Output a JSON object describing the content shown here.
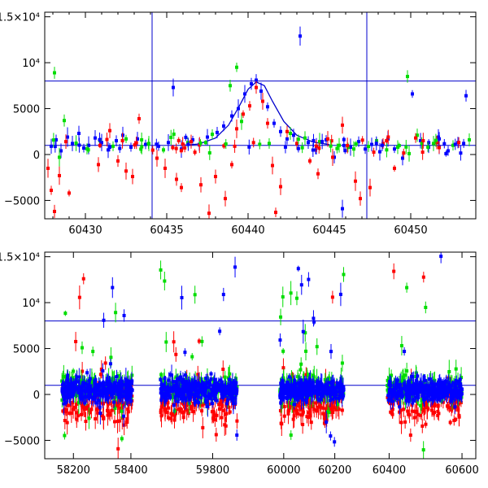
{
  "chart_data": [
    {
      "type": "scatter",
      "xlim": [
        60427.5,
        60454
      ],
      "ylim": [
        -7000,
        15500
      ],
      "x_ticks": [
        60430,
        60435,
        60440,
        60445,
        60450
      ],
      "x_tick_labels": [
        "60430",
        "60435",
        "60440",
        "60445",
        "60450"
      ],
      "y_ticks": [
        -5000,
        0,
        5000,
        10000,
        15000
      ],
      "y_tick_labels": [
        "−5000",
        "0",
        "5000",
        "10⁴",
        "1.5×10⁴"
      ],
      "hlines": [
        1000,
        8000
      ],
      "vlines": [
        60434.1,
        60447.3
      ],
      "model_curve": {
        "color": "#0000cc",
        "points": [
          [
            60436.0,
            1000
          ],
          [
            60437.0,
            1150
          ],
          [
            60438.0,
            1800
          ],
          [
            60438.8,
            3200
          ],
          [
            60439.5,
            5400
          ],
          [
            60440.0,
            7100
          ],
          [
            60440.5,
            7900
          ],
          [
            60441.0,
            7500
          ],
          [
            60441.5,
            5800
          ],
          [
            60442.2,
            3600
          ],
          [
            60443.0,
            2100
          ],
          [
            60444.0,
            1350
          ],
          [
            60445.0,
            1080
          ]
        ]
      },
      "series": [
        {
          "color": "#0000ff",
          "points": [
            [
              60427.9,
              900
            ],
            [
              60428.2,
              1600
            ],
            [
              60428.5,
              400
            ],
            [
              60428.9,
              1900
            ],
            [
              60429.2,
              1200
            ],
            [
              60429.6,
              2300
            ],
            [
              60429.9,
              700
            ],
            [
              60430.2,
              1000
            ],
            [
              60430.6,
              1800
            ],
            [
              60431.0,
              1300
            ],
            [
              60431.4,
              500
            ],
            [
              60431.9,
              1500
            ],
            [
              60432.3,
              2100
            ],
            [
              60432.8,
              800
            ],
            [
              60433.2,
              1700
            ],
            [
              60433.7,
              1100
            ],
            [
              60434.5,
              900
            ],
            [
              60435.1,
              1300
            ],
            [
              60435.4,
              7300
            ],
            [
              60435.9,
              600
            ],
            [
              60436.6,
              1600
            ],
            [
              60437.0,
              1100
            ],
            [
              60437.5,
              1900
            ],
            [
              60438.1,
              2400
            ],
            [
              60438.5,
              3100
            ],
            [
              60439.0,
              4200
            ],
            [
              60439.4,
              5000
            ],
            [
              60439.8,
              6600
            ],
            [
              60440.2,
              7700
            ],
            [
              60440.5,
              8100
            ],
            [
              60440.8,
              6900
            ],
            [
              60441.2,
              5200
            ],
            [
              60441.6,
              3400
            ],
            [
              60442.0,
              2500
            ],
            [
              60442.4,
              1700
            ],
            [
              60442.8,
              2100
            ],
            [
              60443.2,
              12900
            ],
            [
              60443.7,
              1300
            ],
            [
              60444.2,
              900
            ],
            [
              60444.8,
              1600
            ],
            [
              60445.3,
              -300
            ],
            [
              60445.8,
              -5900
            ],
            [
              60446.3,
              800
            ],
            [
              60446.8,
              1400
            ],
            [
              60447.6,
              1100
            ],
            [
              60448.1,
              300
            ],
            [
              60448.6,
              1700
            ],
            [
              60449.0,
              600
            ],
            [
              60449.5,
              -400
            ],
            [
              60450.1,
              6600
            ],
            [
              60450.6,
              1500
            ],
            [
              60451.1,
              800
            ],
            [
              60451.7,
              1900
            ],
            [
              60452.3,
              400
            ],
            [
              60452.9,
              1300
            ],
            [
              60453.4,
              6400
            ]
          ]
        },
        {
          "color": "#00dd00",
          "points": [
            [
              60428.1,
              8900
            ],
            [
              60428.4,
              -300
            ],
            [
              60428.7,
              3700
            ],
            [
              60430.9,
              1500
            ],
            [
              60431.7,
              900
            ],
            [
              60432.5,
              1700
            ],
            [
              60433.9,
              1200
            ],
            [
              60434.8,
              500
            ],
            [
              60436.3,
              1300
            ],
            [
              60437.8,
              2200
            ],
            [
              60438.9,
              7500
            ],
            [
              60439.3,
              9500
            ],
            [
              60439.6,
              3600
            ],
            [
              60442.6,
              2300
            ],
            [
              60443.5,
              1800
            ],
            [
              60444.4,
              1400
            ],
            [
              60445.6,
              1000
            ],
            [
              60446.5,
              600
            ],
            [
              60447.9,
              1500
            ],
            [
              60449.2,
              800
            ],
            [
              60449.8,
              8500
            ],
            [
              60450.4,
              2100
            ],
            [
              60451.4,
              1200
            ],
            [
              60452.6,
              1000
            ],
            [
              60453.6,
              1600
            ]
          ]
        },
        {
          "color": "#ff0000",
          "points": [
            [
              60427.7,
              -1500
            ],
            [
              60427.9,
              -3900
            ],
            [
              60428.1,
              -6200
            ],
            [
              60428.4,
              -2300
            ],
            [
              60428.8,
              1400
            ],
            [
              60429.0,
              -4200
            ],
            [
              60430.8,
              -1100
            ],
            [
              60431.5,
              2600
            ],
            [
              60432.0,
              -700
            ],
            [
              60432.5,
              -1800
            ],
            [
              60432.9,
              -2400
            ],
            [
              60433.3,
              3900
            ],
            [
              60434.4,
              -400
            ],
            [
              60434.9,
              -1500
            ],
            [
              60435.6,
              -2700
            ],
            [
              60435.9,
              -3600
            ],
            [
              60436.5,
              1400
            ],
            [
              60437.1,
              -3300
            ],
            [
              60437.6,
              -6400
            ],
            [
              60438.0,
              -2400
            ],
            [
              60438.6,
              -4800
            ],
            [
              60439.0,
              -1100
            ],
            [
              60439.3,
              2800
            ],
            [
              60439.7,
              4400
            ],
            [
              60440.1,
              5300
            ],
            [
              60440.5,
              7300
            ],
            [
              60440.9,
              5800
            ],
            [
              60441.2,
              3400
            ],
            [
              60441.5,
              -1200
            ],
            [
              60441.7,
              -6300
            ],
            [
              60442.0,
              -3500
            ],
            [
              60442.4,
              2500
            ],
            [
              60443.0,
              1200
            ],
            [
              60443.8,
              -700
            ],
            [
              60444.3,
              -2100
            ],
            [
              60444.9,
              1700
            ],
            [
              60445.2,
              -300
            ],
            [
              60445.8,
              3200
            ],
            [
              60446.6,
              -2900
            ],
            [
              60446.9,
              -4800
            ],
            [
              60447.5,
              -3600
            ],
            [
              60448.3,
              1200
            ],
            [
              60449.0,
              -1500
            ],
            [
              60450.3,
              1800
            ],
            [
              60451.6,
              1300
            ]
          ]
        }
      ]
    },
    {
      "type": "scatter",
      "segments": [
        {
          "xlim": [
            58120,
            58420
          ],
          "x_ticks": [
            58200,
            58400
          ],
          "x_tick_labels": [
            "58200",
            "58400"
          ]
        },
        {
          "xlim": [
            59640,
            59890
          ],
          "x_ticks": [
            59800
          ],
          "x_tick_labels": [
            "59800"
          ]
        },
        {
          "xlim": [
            59940,
            60370
          ],
          "x_ticks": [
            60000,
            60200
          ],
          "x_tick_labels": [
            "60000",
            "60200"
          ]
        },
        {
          "xlim": [
            60370,
            60620
          ],
          "x_ticks": [
            60400,
            60600
          ],
          "x_tick_labels": [
            "60400",
            "60600"
          ]
        }
      ],
      "ylim": [
        -7000,
        15500
      ],
      "y_ticks": [
        -5000,
        0,
        5000,
        10000,
        15000
      ],
      "y_tick_labels": [
        "−5000",
        "0",
        "5000",
        "10⁴",
        "1.5×10⁴"
      ],
      "hlines": [
        1000,
        8000
      ],
      "observing_windows": [
        [
          58160,
          58405
        ],
        [
          59650,
          59870
        ],
        [
          59985,
          60235
        ],
        [
          60395,
          60600
        ]
      ],
      "series": [
        {
          "color": "#ff0000",
          "center": -800,
          "spread": 3200,
          "outlier_max": 15500,
          "outlier_min": -7000
        },
        {
          "color": "#00dd00",
          "center": 700,
          "spread": 1800,
          "outlier_max": 14500,
          "outlier_min": -6800
        },
        {
          "color": "#0000ff",
          "center": 500,
          "spread": 1400,
          "outlier_max": 15500,
          "outlier_min": -5500
        }
      ]
    }
  ]
}
